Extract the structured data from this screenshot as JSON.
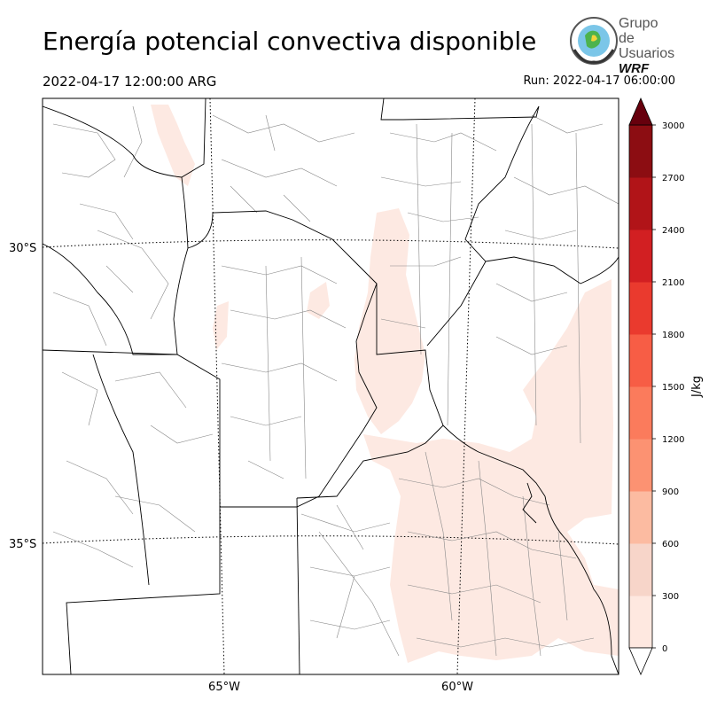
{
  "header": {
    "title": "Energía potencial convectiva disponible",
    "valid_time": "2022-04-17 12:00:00 ARG",
    "run_time": "Run: 2022-04-17 06:00:00"
  },
  "logo": {
    "line1": "Grupo de",
    "line2": "Usuarios",
    "line3": "WRF"
  },
  "map": {
    "lat_labels": [
      "30°S",
      "35°S"
    ],
    "lon_labels": [
      "65°W",
      "60°W"
    ]
  },
  "colorbar": {
    "unit": "J/kg",
    "ticks": [
      0,
      300,
      600,
      900,
      1200,
      1500,
      1800,
      2100,
      2400,
      2700,
      3000
    ],
    "colors": [
      "#fee8e0",
      "#f7d5c9",
      "#fcbba1",
      "#fc9272",
      "#fb7b5c",
      "#f75d45",
      "#ea3a2e",
      "#d21f22",
      "#b11418",
      "#8c0d12"
    ],
    "over_color": "#67000d",
    "under_color": "#ffffff"
  },
  "field": {
    "fill_color": "#fde9e2"
  }
}
